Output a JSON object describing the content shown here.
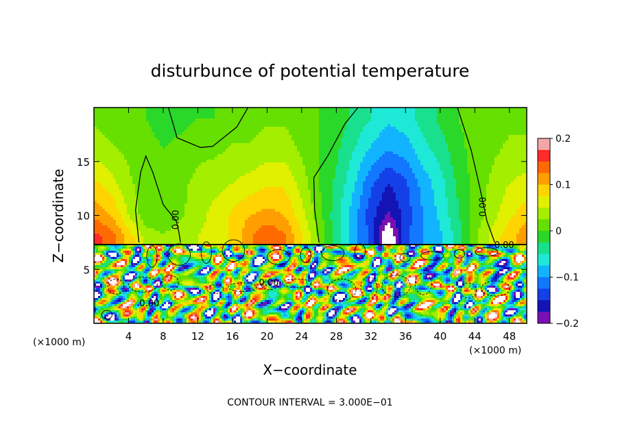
{
  "chart_data": {
    "type": "heatmap",
    "title": "disturbunce of potential temperature",
    "xlabel": "X−coordinate",
    "ylabel": "Z−coordinate",
    "x_unit": "(×1000 m)",
    "y_unit": "(×1000 m)",
    "xlim": [
      0,
      50
    ],
    "ylim": [
      0,
      20
    ],
    "x_ticks": [
      4,
      8,
      12,
      16,
      20,
      24,
      28,
      32,
      36,
      40,
      44,
      48
    ],
    "y_ticks": [
      5,
      10,
      15
    ],
    "colorbar": {
      "range": [
        -0.2,
        0.2
      ],
      "tick_labels": [
        "0.2",
        "0.1",
        "0",
        "−0.1",
        "−0.2"
      ],
      "tick_values": [
        0.2,
        0.1,
        0,
        -0.1,
        -0.2
      ],
      "colors": [
        "#f4a6a6",
        "#ff2a2a",
        "#ff6a00",
        "#ff9e00",
        "#ffd400",
        "#e0f000",
        "#a4ee00",
        "#66e000",
        "#2ad82a",
        "#19e08c",
        "#1ee8d6",
        "#12b4ff",
        "#1278ff",
        "#1440e8",
        "#1414b4",
        "#7a10b4"
      ]
    },
    "contour_labels": [
      "0.00",
      "0.00",
      "0.00",
      "0.00",
      "0.00"
    ],
    "legend_text": "CONTOUR INTERVAL = 3.000E−01",
    "contour_interval": 0.3,
    "upper_layer": {
      "z_range": [
        7.3,
        20
      ],
      "nodes_x": [
        0,
        2,
        4,
        6,
        8,
        10,
        12,
        14,
        16,
        18,
        20,
        22,
        24,
        26,
        28,
        30,
        32,
        34,
        36,
        38,
        40,
        42,
        44,
        46,
        48,
        50
      ],
      "nodes_z": [
        8,
        10,
        13,
        16,
        19
      ],
      "values": [
        [
          0.16,
          0.14,
          0.09,
          0.04,
          0.03,
          0.04,
          0.05,
          0.06,
          0.08,
          0.12,
          0.15,
          0.13,
          0.08,
          0.02,
          -0.04,
          -0.09,
          -0.13,
          -0.24,
          -0.13,
          -0.1,
          -0.08,
          -0.04,
          0.02,
          0.06,
          0.09,
          0.12
        ],
        [
          0.12,
          0.1,
          0.05,
          0.01,
          0.0,
          0.02,
          0.04,
          0.06,
          0.08,
          0.1,
          0.11,
          0.1,
          0.06,
          0.01,
          -0.04,
          -0.09,
          -0.14,
          -0.18,
          -0.14,
          -0.1,
          -0.07,
          -0.03,
          0.01,
          0.04,
          0.07,
          0.09
        ],
        [
          0.08,
          0.06,
          0.03,
          0.01,
          0.0,
          0.02,
          0.03,
          0.04,
          0.05,
          0.06,
          0.07,
          0.07,
          0.04,
          0.0,
          -0.03,
          -0.07,
          -0.12,
          -0.15,
          -0.13,
          -0.09,
          -0.06,
          -0.02,
          0.01,
          0.03,
          0.05,
          0.06
        ],
        [
          0.04,
          0.03,
          0.02,
          0.01,
          0.0,
          0.01,
          0.02,
          0.02,
          0.03,
          0.03,
          0.04,
          0.04,
          0.02,
          0.0,
          -0.02,
          -0.05,
          -0.08,
          -0.1,
          -0.09,
          -0.06,
          -0.04,
          -0.01,
          0.01,
          0.02,
          0.03,
          0.03
        ],
        [
          0.02,
          0.01,
          0.01,
          0.0,
          -0.01,
          -0.01,
          0.0,
          0.0,
          0.01,
          0.01,
          0.02,
          0.02,
          0.01,
          0.0,
          -0.01,
          -0.03,
          -0.05,
          -0.07,
          -0.06,
          -0.04,
          -0.02,
          0.0,
          0.01,
          0.01,
          0.02,
          0.02
        ]
      ]
    },
    "lower_layer": {
      "z_range": [
        0,
        7.3
      ],
      "pattern": "turbulent small-scale eddies",
      "amplitude": [
        -0.3,
        0.3
      ]
    }
  }
}
